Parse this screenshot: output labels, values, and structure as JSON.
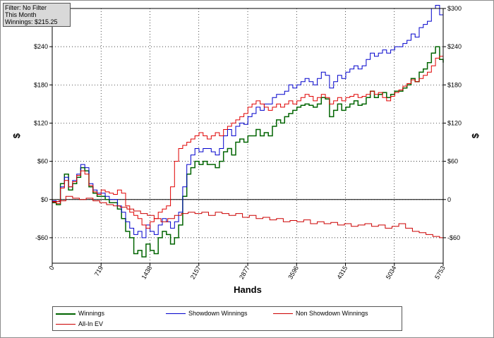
{
  "info_box": {
    "filter": "Filter: No Filter",
    "period": "This Month",
    "winnings": "Winnings: $215.25"
  },
  "legend": [
    {
      "label": "Winnings",
      "color": "#006400"
    },
    {
      "label": "Showdown Winnings",
      "color": "#0000cc"
    },
    {
      "label": "Non Showdown Winnings",
      "color": "#cc0000"
    },
    {
      "label": "All-In EV",
      "color": "#cc0000"
    }
  ],
  "chart_data": {
    "type": "line",
    "title": "",
    "xlabel": "Hands",
    "ylabel": "$",
    "xlim": [
      0,
      5753
    ],
    "ylim": [
      -100,
      300
    ],
    "x_ticks": [
      {
        "value": 0,
        "label": "0"
      },
      {
        "value": 719,
        "label": "719"
      },
      {
        "value": 1438,
        "label": "1438"
      },
      {
        "value": 2157,
        "label": "2157"
      },
      {
        "value": 2877,
        "label": "2877"
      },
      {
        "value": 3596,
        "label": "3596"
      },
      {
        "value": 4315,
        "label": "4315"
      },
      {
        "value": 5034,
        "label": "5034"
      },
      {
        "value": 5753,
        "label": "5753"
      }
    ],
    "y_ticks_left": [
      {
        "value": 240,
        "label": "$240"
      },
      {
        "value": 180,
        "label": "$180"
      },
      {
        "value": 120,
        "label": "$120"
      },
      {
        "value": 60,
        "label": "$60"
      },
      {
        "value": 0,
        "label": "$0"
      },
      {
        "value": -60,
        "label": "-$60"
      }
    ],
    "y_ticks_right": [
      {
        "value": 300,
        "label": "$300"
      },
      {
        "value": 240,
        "label": "$240"
      },
      {
        "value": 180,
        "label": "$180"
      },
      {
        "value": 120,
        "label": "$120"
      },
      {
        "value": 60,
        "label": "$60"
      },
      {
        "value": 0,
        "label": "0"
      },
      {
        "value": -60,
        "label": "-$60"
      }
    ],
    "grid": true,
    "zero_line": true,
    "legend_position": "bottom",
    "series": [
      {
        "name": "Winnings",
        "color": "#006400",
        "width": 1.5,
        "x": [
          0,
          60,
          120,
          180,
          240,
          300,
          360,
          420,
          480,
          540,
          600,
          660,
          720,
          780,
          840,
          900,
          960,
          1020,
          1080,
          1140,
          1200,
          1260,
          1320,
          1380,
          1440,
          1500,
          1560,
          1620,
          1680,
          1740,
          1800,
          1860,
          1920,
          1980,
          2040,
          2100,
          2160,
          2220,
          2280,
          2340,
          2400,
          2460,
          2520,
          2580,
          2640,
          2700,
          2760,
          2820,
          2880,
          2940,
          3000,
          3060,
          3120,
          3180,
          3240,
          3300,
          3360,
          3420,
          3480,
          3540,
          3600,
          3660,
          3720,
          3780,
          3840,
          3900,
          3960,
          4020,
          4080,
          4140,
          4200,
          4260,
          4320,
          4380,
          4440,
          4500,
          4560,
          4620,
          4680,
          4740,
          4800,
          4860,
          4920,
          4980,
          5040,
          5100,
          5160,
          5220,
          5280,
          5340,
          5400,
          5460,
          5520,
          5580,
          5640,
          5700,
          5753
        ],
        "y": [
          -5,
          -8,
          25,
          40,
          15,
          25,
          35,
          50,
          45,
          20,
          10,
          5,
          5,
          0,
          -5,
          -5,
          -15,
          -30,
          -50,
          -60,
          -85,
          -80,
          -90,
          -70,
          -80,
          -85,
          -60,
          -50,
          -55,
          -70,
          -60,
          -40,
          5,
          40,
          50,
          60,
          55,
          60,
          55,
          55,
          50,
          60,
          75,
          80,
          70,
          90,
          95,
          90,
          100,
          100,
          110,
          100,
          105,
          100,
          115,
          125,
          120,
          130,
          135,
          140,
          145,
          148,
          150,
          148,
          145,
          150,
          160,
          158,
          130,
          140,
          150,
          140,
          145,
          150,
          155,
          148,
          150,
          160,
          170,
          160,
          165,
          168,
          160,
          165,
          170,
          170,
          175,
          180,
          190,
          185,
          200,
          205,
          215,
          230,
          240,
          220,
          215
        ]
      },
      {
        "name": "Showdown Winnings",
        "color": "#0000cc",
        "width": 1,
        "x": [
          0,
          60,
          120,
          180,
          240,
          300,
          360,
          420,
          480,
          540,
          600,
          660,
          720,
          780,
          840,
          900,
          960,
          1020,
          1080,
          1140,
          1200,
          1260,
          1320,
          1380,
          1440,
          1500,
          1560,
          1620,
          1680,
          1740,
          1800,
          1860,
          1920,
          1980,
          2040,
          2100,
          2160,
          2220,
          2280,
          2340,
          2400,
          2460,
          2520,
          2580,
          2640,
          2700,
          2760,
          2820,
          2880,
          2940,
          3000,
          3060,
          3120,
          3180,
          3240,
          3300,
          3360,
          3420,
          3480,
          3540,
          3600,
          3660,
          3720,
          3780,
          3840,
          3900,
          3960,
          4020,
          4080,
          4140,
          4200,
          4260,
          4320,
          4380,
          4440,
          4500,
          4560,
          4620,
          4680,
          4740,
          4800,
          4860,
          4920,
          4980,
          5040,
          5100,
          5160,
          5220,
          5280,
          5340,
          5400,
          5460,
          5520,
          5580,
          5640,
          5700,
          5753
        ],
        "y": [
          -2,
          -3,
          20,
          35,
          20,
          30,
          40,
          55,
          50,
          25,
          15,
          10,
          10,
          5,
          0,
          0,
          -10,
          -20,
          -35,
          -45,
          -55,
          -50,
          -60,
          -40,
          -50,
          -55,
          -40,
          -30,
          -35,
          -45,
          -35,
          -20,
          20,
          55,
          70,
          80,
          75,
          80,
          80,
          75,
          70,
          80,
          100,
          110,
          100,
          115,
          120,
          118,
          130,
          135,
          145,
          140,
          150,
          150,
          160,
          165,
          165,
          170,
          180,
          175,
          180,
          185,
          190,
          185,
          180,
          190,
          200,
          195,
          175,
          185,
          195,
          190,
          200,
          205,
          210,
          205,
          210,
          220,
          230,
          225,
          230,
          235,
          230,
          235,
          240,
          240,
          245,
          250,
          260,
          255,
          270,
          275,
          280,
          300,
          305,
          290,
          275
        ]
      },
      {
        "name": "Non Showdown Winnings",
        "color": "#cc0000",
        "width": 1,
        "x": [
          0,
          100,
          200,
          300,
          400,
          500,
          600,
          700,
          800,
          900,
          1000,
          1100,
          1200,
          1300,
          1400,
          1500,
          1600,
          1700,
          1800,
          1900,
          2000,
          2100,
          2200,
          2300,
          2400,
          2500,
          2600,
          2700,
          2800,
          2900,
          3000,
          3100,
          3200,
          3300,
          3400,
          3500,
          3600,
          3700,
          3800,
          3900,
          4000,
          4100,
          4200,
          4300,
          4400,
          4500,
          4600,
          4700,
          4800,
          4900,
          5000,
          5100,
          5200,
          5300,
          5400,
          5500,
          5600,
          5700,
          5753
        ],
        "y": [
          -3,
          -2,
          5,
          2,
          0,
          2,
          -2,
          -5,
          -8,
          -10,
          -12,
          -15,
          -18,
          -22,
          -25,
          -30,
          -35,
          -30,
          -25,
          -22,
          -20,
          -22,
          -20,
          -25,
          -20,
          -22,
          -25,
          -22,
          -28,
          -25,
          -30,
          -28,
          -32,
          -30,
          -35,
          -33,
          -35,
          -32,
          -38,
          -35,
          -38,
          -36,
          -40,
          -38,
          -42,
          -40,
          -38,
          -42,
          -40,
          -45,
          -42,
          -38,
          -45,
          -50,
          -52,
          -55,
          -58,
          -60,
          -58
        ]
      },
      {
        "name": "All-In EV",
        "color": "#e00000",
        "width": 1,
        "x": [
          0,
          60,
          120,
          180,
          240,
          300,
          360,
          420,
          480,
          540,
          600,
          660,
          720,
          780,
          840,
          900,
          960,
          1020,
          1080,
          1140,
          1200,
          1260,
          1320,
          1380,
          1440,
          1500,
          1560,
          1620,
          1680,
          1740,
          1800,
          1860,
          1920,
          1980,
          2040,
          2100,
          2160,
          2220,
          2280,
          2340,
          2400,
          2460,
          2520,
          2580,
          2640,
          2700,
          2760,
          2820,
          2880,
          2940,
          3000,
          3060,
          3120,
          3180,
          3240,
          3300,
          3360,
          3420,
          3480,
          3540,
          3600,
          3660,
          3720,
          3780,
          3840,
          3900,
          3960,
          4020,
          4080,
          4140,
          4200,
          4260,
          4320,
          4380,
          4440,
          4500,
          4560,
          4620,
          4680,
          4740,
          4800,
          4860,
          4920,
          4980,
          5040,
          5100,
          5160,
          5220,
          5280,
          5340,
          5400,
          5460,
          5520,
          5580,
          5640,
          5700,
          5753
        ],
        "y": [
          -4,
          -6,
          18,
          30,
          20,
          28,
          38,
          45,
          40,
          22,
          12,
          8,
          15,
          12,
          10,
          8,
          15,
          10,
          -10,
          -20,
          -25,
          -30,
          -40,
          -45,
          -35,
          -30,
          -20,
          -15,
          -10,
          20,
          60,
          80,
          85,
          90,
          95,
          100,
          105,
          100,
          95,
          100,
          105,
          100,
          110,
          115,
          120,
          125,
          130,
          135,
          145,
          150,
          155,
          150,
          145,
          140,
          145,
          150,
          145,
          150,
          155,
          150,
          155,
          160,
          165,
          162,
          155,
          160,
          165,
          160,
          150,
          155,
          160,
          155,
          160,
          162,
          165,
          160,
          162,
          165,
          170,
          165,
          168,
          160,
          155,
          162,
          168,
          172,
          178,
          182,
          188,
          185,
          190,
          195,
          200,
          210,
          222,
          225,
          220
        ]
      }
    ]
  }
}
